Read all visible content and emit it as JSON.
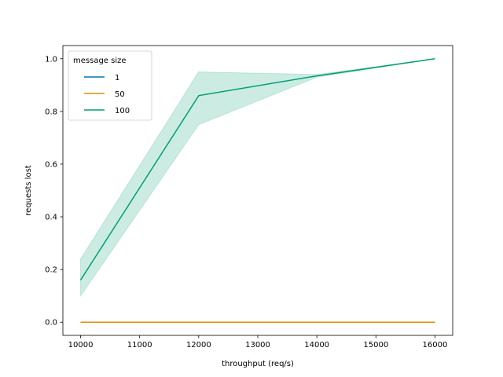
{
  "chart_data": {
    "type": "line",
    "xlabel": "throughput (req/s)",
    "ylabel": "requests lost",
    "xlim": [
      9700,
      16300
    ],
    "ylim": [
      -0.05,
      1.05
    ],
    "xticks": [
      10000,
      11000,
      12000,
      13000,
      14000,
      15000,
      16000
    ],
    "yticks": [
      0.0,
      0.2,
      0.4,
      0.6,
      0.8,
      1.0
    ],
    "xtick_labels": [
      "10000",
      "11000",
      "12000",
      "13000",
      "14000",
      "15000",
      "16000"
    ],
    "ytick_labels": [
      "0.0",
      "0.2",
      "0.4",
      "0.6",
      "0.8",
      "1.0"
    ],
    "grid": false,
    "legend": {
      "title": "message size",
      "placement": "top-left"
    },
    "x": [
      10000,
      12000,
      14000,
      16000
    ],
    "series": [
      {
        "name": "1",
        "color": "#0173b2",
        "values": [
          0.0,
          0.0,
          0.0,
          0.0
        ],
        "ci_low": [
          0.0,
          0.0,
          0.0,
          0.0
        ],
        "ci_high": [
          0.0,
          0.0,
          0.0,
          0.0
        ]
      },
      {
        "name": "50",
        "color": "#de8f05",
        "values": [
          0.0,
          0.0,
          0.0,
          0.0
        ],
        "ci_low": [
          0.0,
          0.0,
          0.0,
          0.0
        ],
        "ci_high": [
          0.0,
          0.0,
          0.0,
          0.0
        ]
      },
      {
        "name": "100",
        "color": "#029e73",
        "values": [
          0.16,
          0.86,
          0.935,
          1.0
        ],
        "ci_low": [
          0.1,
          0.75,
          0.93,
          1.0
        ],
        "ci_high": [
          0.24,
          0.95,
          0.94,
          1.0
        ]
      }
    ]
  }
}
